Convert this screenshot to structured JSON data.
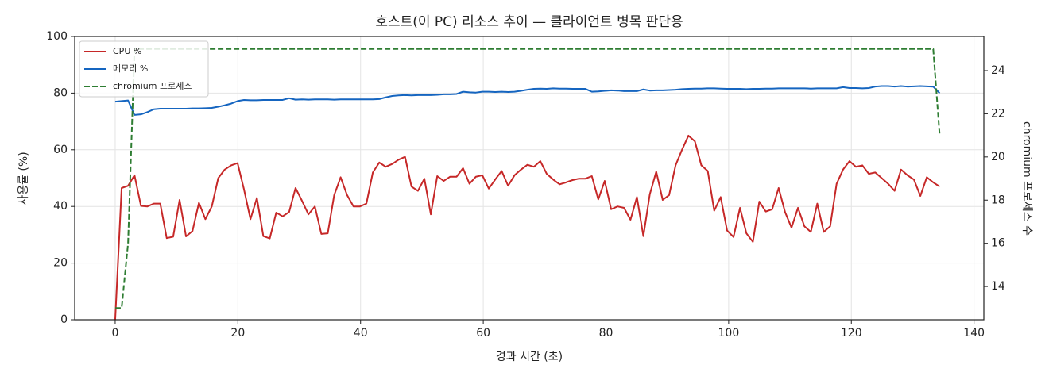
{
  "chart_data": {
    "type": "line",
    "title": "호스트(이 PC) 리소스 추이 — 클라이언트 병목 판단용",
    "x_label": "경과 시간 (초)",
    "y_label": "사용률 (%)",
    "y2_label": "chromium 프로세스 수",
    "x": [
      0,
      1.05,
      2.1,
      3.15,
      4.2,
      5.25,
      6.3,
      7.35,
      8.4,
      9.45,
      10.5,
      11.55,
      12.6,
      13.65,
      14.7,
      15.75,
      16.8,
      17.85,
      18.9,
      19.95,
      21,
      22.05,
      23.1,
      24.15,
      25.2,
      26.25,
      27.3,
      28.35,
      29.4,
      30.45,
      31.5,
      32.55,
      33.6,
      34.65,
      35.7,
      36.75,
      37.8,
      38.85,
      39.9,
      40.95,
      42,
      43.05,
      44.1,
      45.15,
      46.2,
      47.25,
      48.3,
      49.35,
      50.4,
      51.45,
      52.5,
      53.55,
      54.6,
      55.65,
      56.7,
      57.75,
      58.8,
      59.85,
      60.9,
      61.95,
      63,
      64.05,
      65.1,
      66.15,
      67.2,
      68.25,
      69.3,
      70.35,
      71.4,
      72.45,
      73.5,
      74.55,
      75.6,
      76.65,
      77.7,
      78.75,
      79.8,
      80.85,
      81.9,
      82.95,
      84,
      85.05,
      86.1,
      87.15,
      88.2,
      89.25,
      90.3,
      91.35,
      92.4,
      93.45,
      94.5,
      95.55,
      96.6,
      97.65,
      98.7,
      99.75,
      100.8,
      101.85,
      102.9,
      103.95,
      105,
      106.05,
      107.1,
      108.15,
      109.2,
      110.25,
      111.3,
      112.35,
      113.4,
      114.45,
      115.5,
      116.55,
      117.6,
      118.65,
      119.7,
      120.75,
      121.8,
      122.85,
      123.9,
      124.95,
      126,
      127.05,
      128.1,
      129.15,
      130.2,
      131.25,
      132.3,
      133.35,
      134.4
    ],
    "series": [
      {
        "name": "CPU %",
        "color": "#c62828",
        "linestyle": "solid",
        "axis": "y",
        "values": [
          0,
          46.5,
          47.3,
          51,
          40.2,
          40,
          41,
          41,
          28.8,
          29.3,
          42.3,
          29.4,
          31.3,
          41.3,
          35.5,
          40,
          50,
          53,
          54.5,
          55.3,
          46,
          35.5,
          43,
          29.5,
          28.7,
          37.8,
          36.5,
          38,
          46.5,
          42,
          37.2,
          40,
          30.3,
          30.5,
          44,
          50.3,
          44,
          40,
          40,
          41,
          52,
          55.5,
          54,
          55,
          56.5,
          57.5,
          47,
          45.5,
          49.8,
          37.2,
          50.7,
          49,
          50.5,
          50.5,
          53.5,
          48,
          50.5,
          51,
          46.3,
          49.5,
          52.5,
          47.3,
          51,
          53,
          54.7,
          54,
          56,
          51.5,
          49.5,
          47.8,
          48.5,
          49.3,
          49.8,
          49.8,
          50.7,
          42.5,
          49,
          39,
          40,
          39.5,
          35.3,
          43.3,
          29.5,
          44.3,
          52.3,
          42.3,
          44,
          54.5,
          60,
          65,
          63,
          54.5,
          52.5,
          38.5,
          43.3,
          31.5,
          29.2,
          39.5,
          30.5,
          27.5,
          41.7,
          38.2,
          39,
          46.5,
          38,
          32.5,
          39.5,
          33,
          31,
          41,
          31,
          33,
          48,
          53,
          56,
          54,
          54.5,
          51.5,
          52,
          50,
          48,
          45.5,
          53,
          51,
          49.5,
          43.7,
          50.3,
          48.5,
          47
        ]
      },
      {
        "name": "메모리 %",
        "color": "#1565c0",
        "linestyle": "solid",
        "axis": "y",
        "values": [
          77,
          77.2,
          77.4,
          72.3,
          72.5,
          73.3,
          74.3,
          74.5,
          74.5,
          74.5,
          74.5,
          74.5,
          74.6,
          74.6,
          74.7,
          74.8,
          75.2,
          75.7,
          76.3,
          77.2,
          77.6,
          77.5,
          77.5,
          77.6,
          77.6,
          77.6,
          77.6,
          78.2,
          77.7,
          77.8,
          77.7,
          77.8,
          77.8,
          77.8,
          77.7,
          77.8,
          77.8,
          77.8,
          77.8,
          77.8,
          77.8,
          77.9,
          78.5,
          79,
          79.2,
          79.3,
          79.2,
          79.3,
          79.3,
          79.3,
          79.4,
          79.6,
          79.6,
          79.7,
          80.5,
          80.3,
          80.2,
          80.5,
          80.5,
          80.4,
          80.5,
          80.4,
          80.5,
          80.8,
          81.2,
          81.5,
          81.6,
          81.5,
          81.7,
          81.6,
          81.6,
          81.5,
          81.5,
          81.5,
          80.5,
          80.6,
          80.8,
          81,
          80.9,
          80.7,
          80.7,
          80.7,
          81.3,
          80.9,
          81,
          81,
          81.1,
          81.2,
          81.4,
          81.5,
          81.6,
          81.6,
          81.7,
          81.7,
          81.6,
          81.5,
          81.5,
          81.5,
          81.4,
          81.5,
          81.5,
          81.6,
          81.6,
          81.7,
          81.7,
          81.7,
          81.7,
          81.7,
          81.6,
          81.7,
          81.7,
          81.7,
          81.7,
          82.1,
          81.8,
          81.8,
          81.7,
          81.8,
          82.3,
          82.5,
          82.5,
          82.3,
          82.5,
          82.3,
          82.4,
          82.5,
          82.4,
          82.3,
          80
        ]
      },
      {
        "name": "chromium 프로세스",
        "color": "#2e7d32",
        "linestyle": "dashed",
        "axis": "y2",
        "values": [
          13,
          13,
          16,
          25,
          25,
          25,
          25,
          25,
          25,
          25,
          25,
          25,
          25,
          25,
          25,
          25,
          25,
          25,
          25,
          25,
          25,
          25,
          25,
          25,
          25,
          25,
          25,
          25,
          25,
          25,
          25,
          25,
          25,
          25,
          25,
          25,
          25,
          25,
          25,
          25,
          25,
          25,
          25,
          25,
          25,
          25,
          25,
          25,
          25,
          25,
          25,
          25,
          25,
          25,
          25,
          25,
          25,
          25,
          25,
          25,
          25,
          25,
          25,
          25,
          25,
          25,
          25,
          25,
          25,
          25,
          25,
          25,
          25,
          25,
          25,
          25,
          25,
          25,
          25,
          25,
          25,
          25,
          25,
          25,
          25,
          25,
          25,
          25,
          25,
          25,
          25,
          25,
          25,
          25,
          25,
          25,
          25,
          25,
          25,
          25,
          25,
          25,
          25,
          25,
          25,
          25,
          25,
          25,
          25,
          25,
          25,
          25,
          25,
          25,
          25,
          25,
          25,
          25,
          25,
          25,
          25,
          25,
          25,
          25,
          25,
          25,
          25,
          25,
          21
        ]
      }
    ],
    "xlim": [
      -6.6,
      141.6
    ],
    "xticks": [
      0,
      20,
      40,
      60,
      80,
      100,
      120,
      140
    ],
    "ylim": [
      0,
      100
    ],
    "yticks": [
      0,
      20,
      40,
      60,
      80,
      100
    ],
    "y2lim": [
      12.46,
      25.58
    ],
    "y2ticks": [
      14,
      16,
      18,
      20,
      22,
      24
    ],
    "grid": true,
    "legend": "upper-left"
  }
}
